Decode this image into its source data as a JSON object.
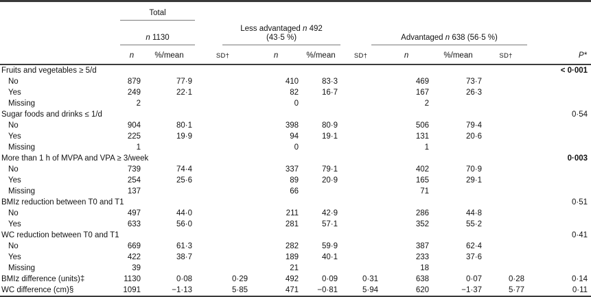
{
  "header": {
    "total_label": "Total",
    "n_symbol": "n",
    "total_n": "1130",
    "less_line1_before": "Less advantaged",
    "less_n": "492",
    "less_line2": "(43·5 %)",
    "adv_before": "Advantaged",
    "adv_rest": "638 (56·5 %)",
    "col_n": "n",
    "col_mean": "%/mean",
    "col_sd": "SD†",
    "col_p": "P*"
  },
  "rows": [
    {
      "label": "Fruits and vegetables ≥ 5/d",
      "indent": false,
      "cells": null,
      "p": "< 0·001",
      "p_bold": true
    },
    {
      "label": "No",
      "indent": true,
      "cells": [
        "879",
        "77·9",
        "",
        "410",
        "83·3",
        "",
        "469",
        "73·7",
        ""
      ],
      "p": ""
    },
    {
      "label": "Yes",
      "indent": true,
      "cells": [
        "249",
        "22·1",
        "",
        "82",
        "16·7",
        "",
        "167",
        "26·3",
        ""
      ],
      "p": ""
    },
    {
      "label": "Missing",
      "indent": true,
      "cells": [
        "2",
        "",
        "",
        "0",
        "",
        "",
        "2",
        "",
        ""
      ],
      "p": ""
    },
    {
      "label": "Sugar foods and drinks ≤ 1/d",
      "indent": false,
      "cells": null,
      "p": "0·54",
      "p_bold": false
    },
    {
      "label": "No",
      "indent": true,
      "cells": [
        "904",
        "80·1",
        "",
        "398",
        "80·9",
        "",
        "506",
        "79·4",
        ""
      ],
      "p": ""
    },
    {
      "label": "Yes",
      "indent": true,
      "cells": [
        "225",
        "19·9",
        "",
        "94",
        "19·1",
        "",
        "131",
        "20·6",
        ""
      ],
      "p": ""
    },
    {
      "label": "Missing",
      "indent": true,
      "cells": [
        "1",
        "",
        "",
        "0",
        "",
        "",
        "1",
        "",
        ""
      ],
      "p": ""
    },
    {
      "label": "More than 1 h of MVPA and VPA ≥ 3/week",
      "indent": false,
      "cells": null,
      "p": "0·003",
      "p_bold": true
    },
    {
      "label": "No",
      "indent": true,
      "cells": [
        "739",
        "74·4",
        "",
        "337",
        "79·1",
        "",
        "402",
        "70·9",
        ""
      ],
      "p": ""
    },
    {
      "label": "Yes",
      "indent": true,
      "cells": [
        "254",
        "25·6",
        "",
        "89",
        "20·9",
        "",
        "165",
        "29·1",
        ""
      ],
      "p": ""
    },
    {
      "label": "Missing",
      "indent": true,
      "cells": [
        "137",
        "",
        "",
        "66",
        "",
        "",
        "71",
        "",
        ""
      ],
      "p": ""
    },
    {
      "label": "BMIz reduction between T0 and T1",
      "indent": false,
      "cells": null,
      "p": "0·51",
      "p_bold": false
    },
    {
      "label": "No",
      "indent": true,
      "cells": [
        "497",
        "44·0",
        "",
        "211",
        "42·9",
        "",
        "286",
        "44·8",
        ""
      ],
      "p": ""
    },
    {
      "label": "Yes",
      "indent": true,
      "cells": [
        "633",
        "56·0",
        "",
        "281",
        "57·1",
        "",
        "352",
        "55·2",
        ""
      ],
      "p": ""
    },
    {
      "label": "WC reduction between T0 and T1",
      "indent": false,
      "cells": null,
      "p": "0·41",
      "p_bold": false
    },
    {
      "label": "No",
      "indent": true,
      "cells": [
        "669",
        "61·3",
        "",
        "282",
        "59·9",
        "",
        "387",
        "62·4",
        ""
      ],
      "p": ""
    },
    {
      "label": "Yes",
      "indent": true,
      "cells": [
        "422",
        "38·7",
        "",
        "189",
        "40·1",
        "",
        "233",
        "37·6",
        ""
      ],
      "p": ""
    },
    {
      "label": "Missing",
      "indent": true,
      "cells": [
        "39",
        "",
        "",
        "21",
        "",
        "",
        "18",
        "",
        ""
      ],
      "p": ""
    },
    {
      "label": "BMIz difference (units)‡",
      "indent": false,
      "cells": [
        "1130",
        "0·08",
        "0·29",
        "492",
        "0·09",
        "0·31",
        "638",
        "0·07",
        "0·28"
      ],
      "p": "0·14",
      "p_bold": false
    },
    {
      "label": "WC difference (cm)§",
      "indent": false,
      "cells": [
        "1091",
        "−1·13",
        "5·85",
        "471",
        "−0·81",
        "5·94",
        "620",
        "−1·37",
        "5·77"
      ],
      "p": "0·11",
      "p_bold": false
    }
  ]
}
